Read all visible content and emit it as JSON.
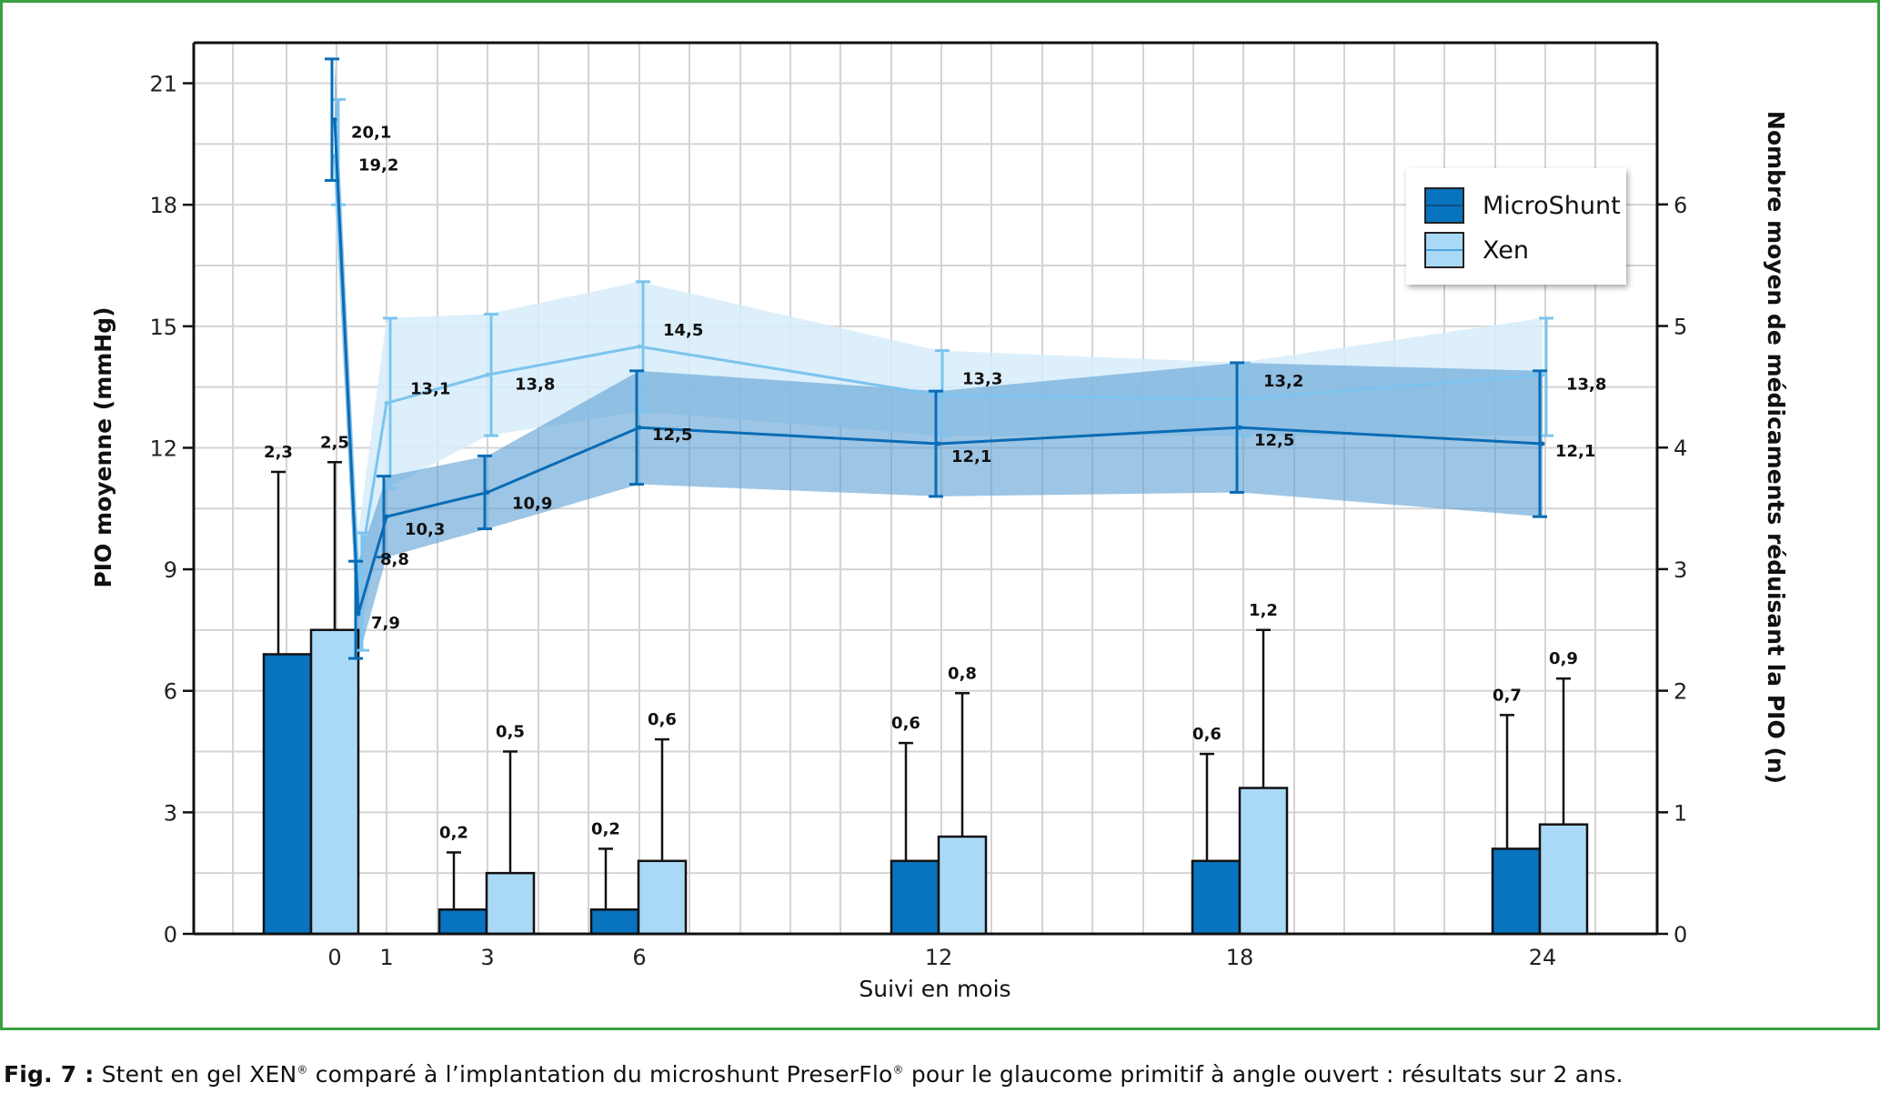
{
  "chart_data": {
    "type": "bar+line",
    "colors": {
      "microshunt": "#0873be",
      "xen": "#a9d9f7",
      "microshunt_band": "#5b9fd3",
      "xen_band": "#d6ecfa",
      "xen_line": "#7cc4ee",
      "grid": "#d4d4d4",
      "frame": "#3aa142"
    },
    "xlabel": "Suivi en mois",
    "ylabel_left": "PIO moyenne (mmHg)",
    "ylabel_right": "Nombre moyen de médicaments réduisant la PIO (n)",
    "x_ticks": [
      0,
      1,
      3,
      6,
      12,
      18,
      24
    ],
    "y_left_ticks": [
      0,
      3,
      6,
      9,
      12,
      15,
      18,
      21
    ],
    "y_right_ticks": [
      0,
      1,
      2,
      3,
      4,
      5,
      6
    ],
    "ylim_left": [
      0,
      22
    ],
    "ylim_right": [
      0,
      7.33
    ],
    "grid": true,
    "legend_position": "top-right",
    "legend": [
      "MicroShunt",
      "Xen"
    ],
    "bars": {
      "x": [
        0,
        3,
        6,
        12,
        18,
        24
      ],
      "series": [
        {
          "name": "MicroShunt",
          "values": [
            2.3,
            0.2,
            0.2,
            0.6,
            0.6,
            0.7
          ],
          "error": [
            1.5,
            0.47,
            0.5,
            0.97,
            0.88,
            1.1
          ],
          "labels": [
            "2,3",
            "0,2",
            "0,2",
            "0,6",
            "0,6",
            "0,7"
          ]
        },
        {
          "name": "Xen",
          "values": [
            2.5,
            0.5,
            0.6,
            0.8,
            1.2,
            0.9
          ],
          "error": [
            1.38,
            1.0,
            1.0,
            1.18,
            1.3,
            1.2
          ],
          "labels": [
            "2,5",
            "0,5",
            "0,6",
            "0,8",
            "1,2",
            "0,9"
          ]
        }
      ]
    },
    "lines": {
      "series": [
        {
          "name": "MicroShunt",
          "points": [
            [
              0,
              20.1
            ],
            [
              0.5,
              7.9
            ],
            [
              1,
              10.3
            ],
            [
              3,
              10.9
            ],
            [
              6,
              12.5
            ],
            [
              12,
              12.1
            ],
            [
              18,
              12.5
            ],
            [
              24,
              12.1
            ]
          ],
          "low": [
            18.6,
            6.8,
            9.3,
            10.0,
            11.1,
            10.8,
            10.9,
            10.3
          ],
          "high": [
            21.6,
            9.2,
            11.3,
            11.8,
            13.9,
            13.4,
            14.1,
            13.9
          ],
          "labels": [
            "20,1",
            "7,9",
            "10,3",
            "10,9",
            "12,5",
            "12,1",
            "12,5",
            "12,1"
          ]
        },
        {
          "name": "Xen",
          "points": [
            [
              0,
              19.2
            ],
            [
              0.5,
              8.8
            ],
            [
              1,
              13.1
            ],
            [
              3,
              13.8
            ],
            [
              6,
              14.5
            ],
            [
              12,
              13.3
            ],
            [
              18,
              13.2
            ],
            [
              24,
              13.8
            ]
          ],
          "low": [
            18.0,
            7.0,
            11.0,
            12.3,
            12.9,
            12.3,
            12.3,
            12.3
          ],
          "high": [
            20.6,
            9.9,
            15.2,
            15.3,
            16.1,
            14.4,
            14.1,
            15.2
          ],
          "labels": [
            "19,2",
            "8,8",
            "13,1",
            "13,8",
            "14,5",
            "13,3",
            "13,2",
            "13,8"
          ]
        }
      ]
    }
  },
  "caption": {
    "fig_label": "Fig. 7 :",
    "text_1": " Stent en gel XEN",
    "sup_1": "®",
    "text_2": " comparé à l’implantation du microshunt PreserFlo",
    "sup_2": "®",
    "text_3": " pour le glaucome primitif à angle ouvert : résultats sur 2 ans."
  }
}
